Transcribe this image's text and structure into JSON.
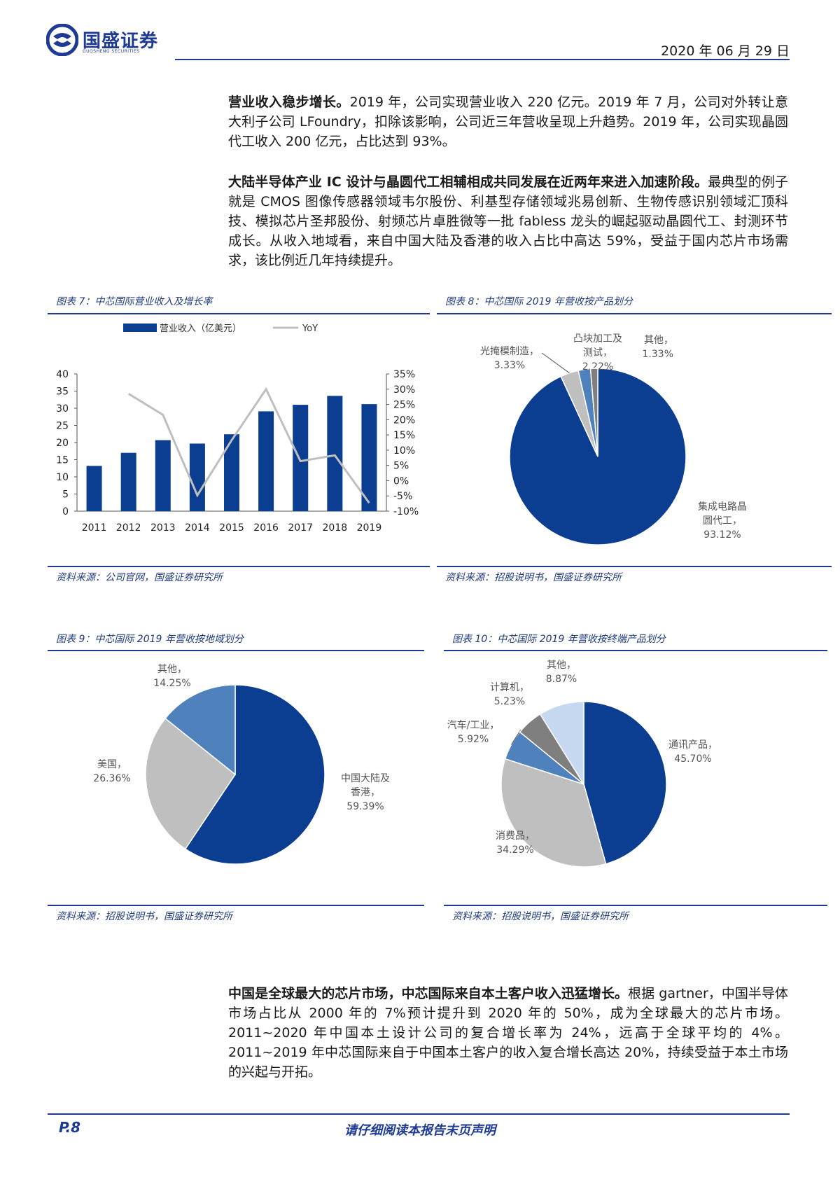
{
  "header": {
    "company_cn": "国盛证券",
    "company_en": "GUOSHENG SECURITIES",
    "date": "2020 年 06 月 29 日"
  },
  "paragraphs": {
    "p1_bold": "营业收入稳步增长。",
    "p1_text": "2019 年，公司实现营业收入 220 亿元。2019 年 7 月，公司对外转让意大利子公司 LFoundry，扣除该影响，公司近三年营收呈现上升趋势。2019 年，公司实现晶圆代工收入 200 亿元，占比达到 93%。",
    "p2_bold": "大陆半导体产业 IC 设计与晶圆代工相辅相成共同发展在近两年来进入加速阶段。",
    "p2_text": "最典型的例子就是 CMOS 图像传感器领域韦尔股份、利基型存储领域兆易创新、生物传感识别领域汇顶科技、模拟芯片圣邦股份、射频芯片卓胜微等一批 fabless 龙头的崛起驱动晶圆代工、封测环节成长。从收入地域看，来自中国大陆及香港的收入占比中高达 59%，受益于国内芯片市场需求，该比例近几年持续提升。",
    "p3_bold": "中国是全球最大的芯片市场，中芯国际来自本土客户收入迅猛增长。",
    "p3_text": "根据 gartner，中国半导体市场占比从 2000 年的 7%预计提升到 2020 年的 50%，成为全球最大的芯片市场。2011~2020 年中国本土设计公司的复合增长率为 24%，远高于全球平均的 4%。2011~2019 年中芯国际来自于中国本土客户的收入复合增长高达 20%，持续受益于本土市场的兴起与开拓。"
  },
  "figures": {
    "fig7_title": "图表 7：中芯国际营业收入及增长率",
    "fig8_title": "图表 8：中芯国际 2019 年营收按产品划分",
    "fig9_title": "图表 9：中芯国际 2019 年营收按地域划分",
    "fig10_title": "图表 10：中芯国际 2019 年营收按终端产品划分",
    "src7": "资料来源：公司官网，国盛证券研究所",
    "src8": "资料来源：招股说明书，国盛证券研究所",
    "src9": "资料来源：招股说明书，国盛证券研究所",
    "src10": "资料来源：招股说明书，国盛证券研究所"
  },
  "footer": {
    "page": "P.8",
    "notice": "请仔细阅读本报告末页声明"
  },
  "colors": {
    "brand": "#1f3a93",
    "bar": "#0b3d91",
    "yoy_line": "#bfbfbf",
    "gray_mid": "#bfbfbf",
    "gray_dark": "#7f7f7f",
    "blue_mid": "#4f81bd",
    "light_blue": "#c6d9f1"
  },
  "chart_data": [
    {
      "id": "fig7",
      "type": "bar",
      "categories": [
        "2011",
        "2012",
        "2013",
        "2014",
        "2015",
        "2016",
        "2017",
        "2018",
        "2019"
      ],
      "series": [
        {
          "name": "营业收入（亿美元）",
          "type": "bar",
          "axis": "left",
          "values": [
            13.2,
            17.0,
            20.7,
            19.7,
            22.4,
            29.1,
            31.0,
            33.6,
            31.2
          ]
        },
        {
          "name": "YoY",
          "type": "line",
          "axis": "right",
          "values": [
            null,
            28.5,
            21.6,
            -4.8,
            13.3,
            30.0,
            6.4,
            8.3,
            -7.3
          ]
        }
      ],
      "y_left": {
        "min": 0,
        "max": 40,
        "ticks": [
          "0",
          "5",
          "10",
          "15",
          "20",
          "25",
          "30",
          "35",
          "40"
        ]
      },
      "y_right": {
        "min": -10,
        "max": 35,
        "ticks": [
          "-10%",
          "-5%",
          "0%",
          "5%",
          "10%",
          "15%",
          "20%",
          "25%",
          "30%",
          "35%"
        ]
      },
      "legend": [
        "营业收入（亿美元）",
        "YoY"
      ]
    },
    {
      "id": "fig8",
      "type": "pie",
      "slices": [
        {
          "label": "集成电路晶圆代工",
          "value": 93.12,
          "text": "93.12%",
          "color": "#0b3d91"
        },
        {
          "label": "光掩模制造",
          "value": 3.33,
          "text": "3.33%",
          "color": "#bfbfbf"
        },
        {
          "label": "凸块加工及测试",
          "value": 2.22,
          "text": "2.22%",
          "color": "#4f81bd"
        },
        {
          "label": "其他",
          "value": 1.33,
          "text": "1.33%",
          "color": "#7f7f7f"
        }
      ]
    },
    {
      "id": "fig9",
      "type": "pie",
      "slices": [
        {
          "label": "中国大陆及香港",
          "value": 59.39,
          "text": "59.39%",
          "color": "#0b3d91"
        },
        {
          "label": "美国",
          "value": 26.36,
          "text": "26.36%",
          "color": "#bfbfbf"
        },
        {
          "label": "其他",
          "value": 14.25,
          "text": "14.25%",
          "color": "#4f81bd"
        }
      ]
    },
    {
      "id": "fig10",
      "type": "pie",
      "slices": [
        {
          "label": "通讯产品",
          "value": 45.7,
          "text": "45.70%",
          "color": "#0b3d91"
        },
        {
          "label": "消费品",
          "value": 34.29,
          "text": "34.29%",
          "color": "#bfbfbf"
        },
        {
          "label": "汽车/工业",
          "value": 5.92,
          "text": "5.92%",
          "color": "#4f81bd"
        },
        {
          "label": "计算机",
          "value": 5.23,
          "text": "5.23%",
          "color": "#7f7f7f"
        },
        {
          "label": "其他",
          "value": 8.87,
          "text": "8.87%",
          "color": "#c6d9f1"
        }
      ]
    }
  ]
}
